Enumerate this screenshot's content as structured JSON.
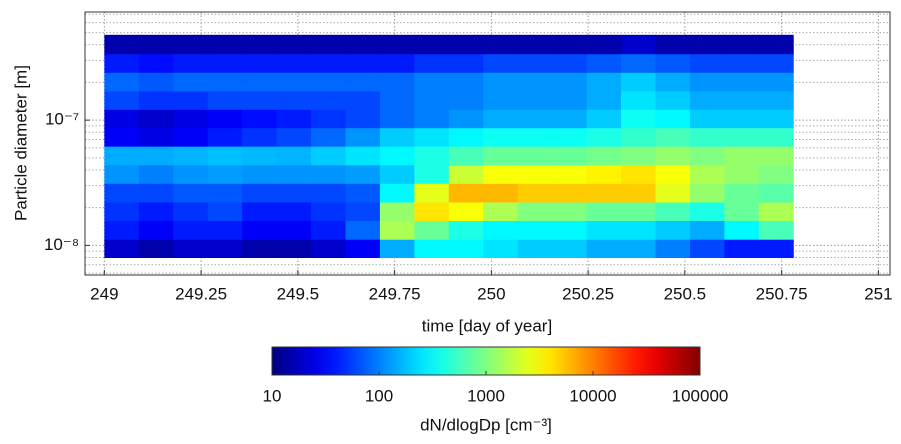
{
  "chart_data": {
    "type": "heatmap",
    "xlabel": "time [day of year]",
    "ylabel": "Particle diameter [m]",
    "colorbar_label": "dN/dlogDp [cm⁻³]",
    "colormap": "jet",
    "log_y": true,
    "log_color": true,
    "grid": true,
    "xlim": [
      248.95,
      251.03
    ],
    "xticks": [
      249,
      249.25,
      249.5,
      249.75,
      250,
      250.25,
      250.5,
      250.75,
      251
    ],
    "ylim": [
      5.8e-09,
      7.3e-07
    ],
    "yticks": [
      {
        "value": 1e-08,
        "label": "10⁻⁸"
      },
      {
        "value": 1e-07,
        "label": "10⁻⁷"
      }
    ],
    "clim": [
      10,
      100000
    ],
    "cticks": [
      10,
      100,
      1000,
      10000,
      100000
    ],
    "x_edges": [
      249.0,
      249.089,
      249.178,
      249.267,
      249.356,
      249.445,
      249.534,
      249.623,
      249.712,
      249.801,
      249.89,
      249.979,
      250.068,
      250.157,
      250.246,
      250.335,
      250.424,
      250.513,
      250.602,
      250.691,
      250.78
    ],
    "y_edges": [
      8e-09,
      1.12e-08,
      1.58e-08,
      2.22e-08,
      3.13e-08,
      4.4e-08,
      6.2e-08,
      8.7e-08,
      1.22e-07,
      1.71e-07,
      2.41e-07,
      3.39e-07,
      4.8e-07
    ],
    "z": [
      [
        20,
        15,
        20,
        20,
        15,
        15,
        20,
        30,
        150,
        300,
        300,
        250,
        200,
        200,
        150,
        150,
        100,
        60,
        40,
        40
      ],
      [
        40,
        30,
        40,
        40,
        30,
        30,
        40,
        80,
        1500,
        800,
        400,
        300,
        300,
        300,
        250,
        250,
        200,
        150,
        300,
        600
      ],
      [
        50,
        40,
        50,
        60,
        40,
        40,
        50,
        60,
        1200,
        4000,
        3000,
        1500,
        1000,
        1000,
        800,
        800,
        600,
        400,
        800,
        1500
      ],
      [
        60,
        60,
        70,
        70,
        60,
        60,
        60,
        70,
        300,
        2500,
        6000,
        6000,
        5000,
        5000,
        5000,
        5000,
        2500,
        1200,
        800,
        700
      ],
      [
        120,
        100,
        120,
        130,
        120,
        120,
        120,
        130,
        200,
        400,
        2000,
        3000,
        3000,
        3000,
        3500,
        4000,
        3000,
        1500,
        1200,
        1000
      ],
      [
        150,
        150,
        160,
        180,
        170,
        160,
        200,
        250,
        300,
        400,
        600,
        800,
        800,
        800,
        900,
        1000,
        1200,
        1000,
        1200,
        1200
      ],
      [
        30,
        25,
        30,
        40,
        50,
        60,
        80,
        120,
        200,
        250,
        300,
        350,
        350,
        350,
        400,
        500,
        600,
        500,
        500,
        500
      ],
      [
        25,
        20,
        25,
        30,
        35,
        40,
        50,
        60,
        80,
        100,
        120,
        150,
        150,
        150,
        200,
        350,
        300,
        200,
        200,
        200
      ],
      [
        60,
        50,
        50,
        60,
        60,
        60,
        60,
        60,
        80,
        100,
        100,
        120,
        120,
        120,
        150,
        250,
        200,
        150,
        150,
        150
      ],
      [
        80,
        70,
        80,
        80,
        80,
        80,
        80,
        80,
        80,
        100,
        100,
        120,
        120,
        120,
        150,
        200,
        150,
        120,
        120,
        120
      ],
      [
        40,
        35,
        40,
        40,
        40,
        40,
        40,
        40,
        40,
        50,
        50,
        60,
        60,
        60,
        70,
        80,
        70,
        60,
        60,
        60
      ],
      [
        15,
        15,
        15,
        15,
        15,
        15,
        15,
        15,
        15,
        15,
        15,
        15,
        15,
        15,
        15,
        20,
        15,
        15,
        15,
        15
      ]
    ]
  }
}
